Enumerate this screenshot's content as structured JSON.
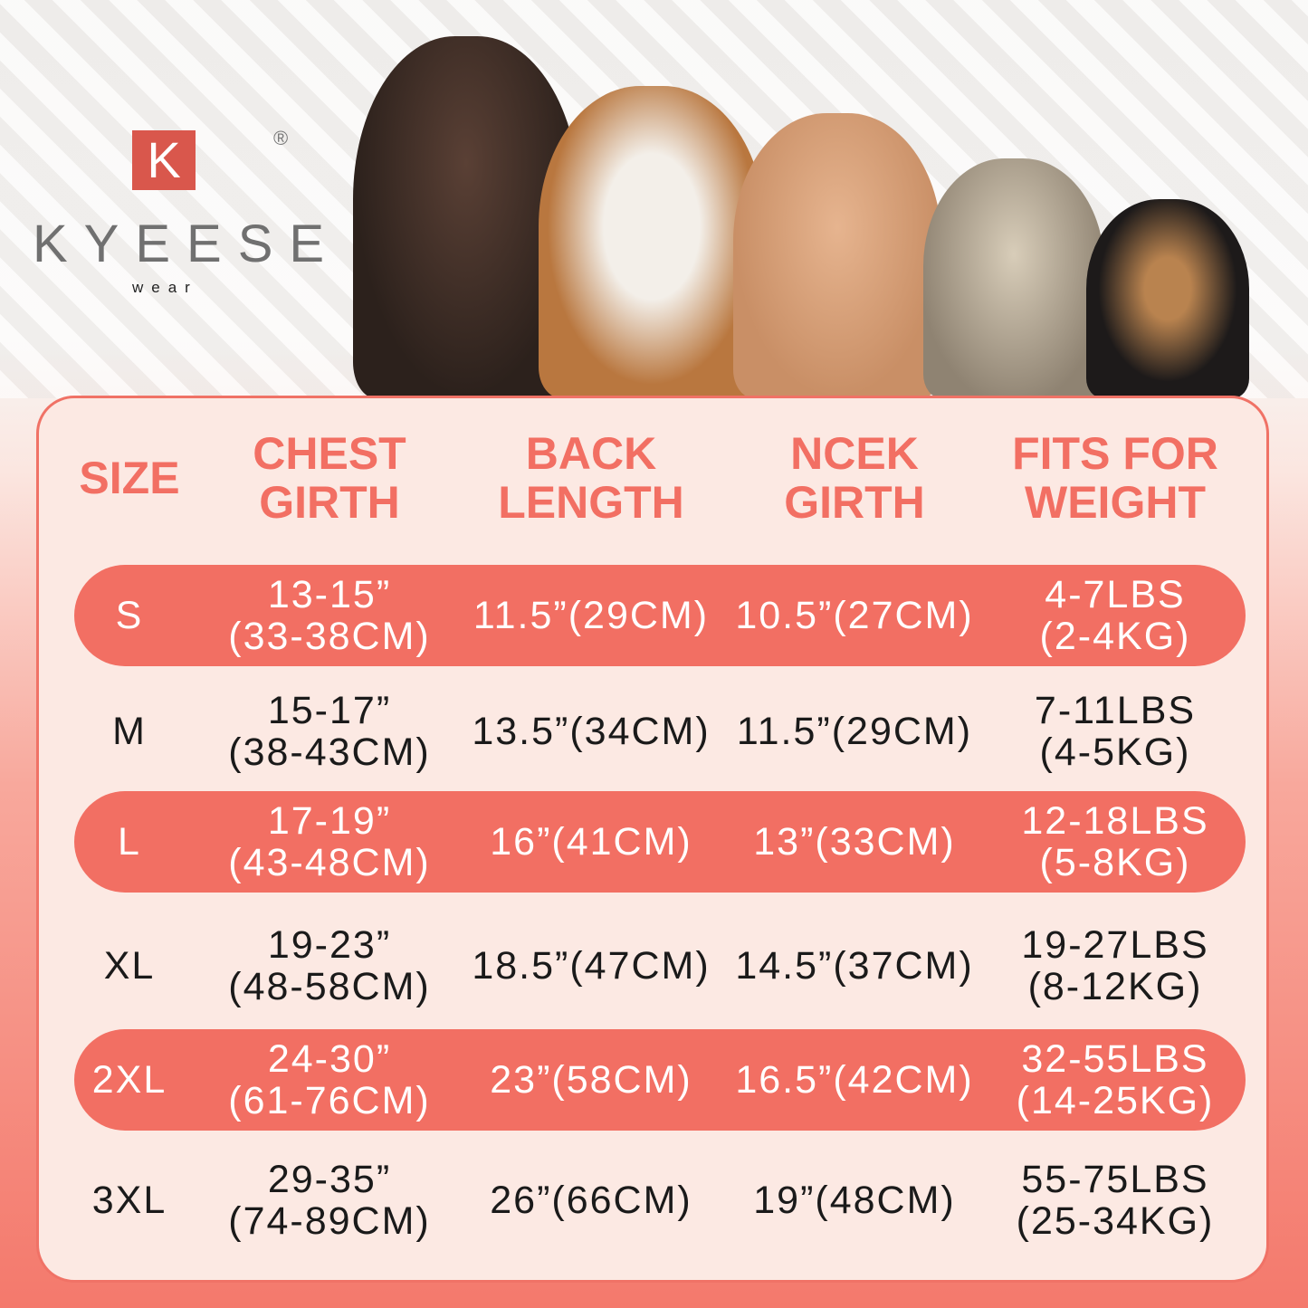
{
  "brand": {
    "logo_letter": "K",
    "name": "KYEESE",
    "tagline": "wear",
    "registered": "®",
    "accent": "#f26f63"
  },
  "images": {
    "dogs": [
      "doberman",
      "beagle",
      "poodle",
      "terrier",
      "chihuahua"
    ]
  },
  "table": {
    "headers": [
      "SIZE",
      "CHEST\nGIRTH",
      "BACK\nLENGTH",
      "NCEK\nGIRTH",
      "FITS FOR\nWEIGHT"
    ],
    "rows": [
      {
        "size": "S",
        "chest": "13-15”\n(33-38CM)",
        "back": "11.5”(29CM)",
        "neck": "10.5”(27CM)",
        "weight": "4-7LBS\n(2-4KG)",
        "highlight": true
      },
      {
        "size": "M",
        "chest": "15-17”\n(38-43CM)",
        "back": "13.5”(34CM)",
        "neck": "11.5”(29CM)",
        "weight": "7-11LBS\n(4-5KG)",
        "highlight": false
      },
      {
        "size": "L",
        "chest": "17-19”\n(43-48CM)",
        "back": "16”(41CM)",
        "neck": "13”(33CM)",
        "weight": "12-18LBS\n(5-8KG)",
        "highlight": true
      },
      {
        "size": "XL",
        "chest": "19-23”\n(48-58CM)",
        "back": "18.5”(47CM)",
        "neck": "14.5”(37CM)",
        "weight": "19-27LBS\n(8-12KG)",
        "highlight": false
      },
      {
        "size": "2XL",
        "chest": "24-30”\n(61-76CM)",
        "back": "23”(58CM)",
        "neck": "16.5”(42CM)",
        "weight": "32-55LBS\n(14-25KG)",
        "highlight": true
      },
      {
        "size": "3XL",
        "chest": "29-35”\n(74-89CM)",
        "back": "26”(66CM)",
        "neck": "19”(48CM)",
        "weight": "55-75LBS\n(25-34KG)",
        "highlight": false
      }
    ]
  }
}
